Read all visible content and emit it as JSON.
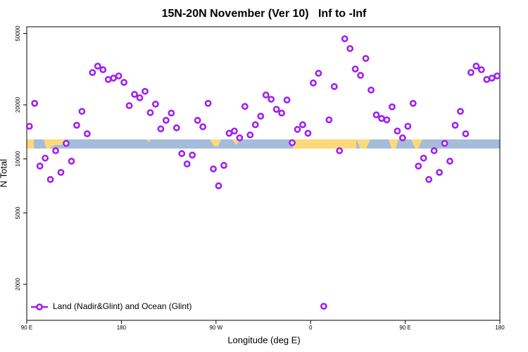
{
  "chart_data": {
    "type": "scatter",
    "title": "15N-20N November (Ver 10)   Inf to -Inf",
    "x_label": "Longitude (deg E)",
    "y_label": "N Total",
    "log_y": true,
    "legend_position": "bottom-left",
    "xlim": [
      90,
      540
    ],
    "ylim": [
      1260,
      54500
    ],
    "xticks": [
      {
        "value": 90,
        "label": "90 E"
      },
      180,
      {
        "value": 270,
        "label": "90 W"
      },
      {
        "value": 360,
        "label": "0"
      },
      {
        "value": 450,
        "label": "90 E"
      },
      {
        "value": 540,
        "label": "180"
      }
    ],
    "yticks": [
      2000,
      5000,
      10000,
      20000,
      50000
    ],
    "series": [
      {
        "name": "Land (Nadir&Glint) and Ocean (Glint)",
        "color": "#a020f0",
        "x": [
          92.5,
          97.5,
          102.5,
          107.5,
          112.5,
          117.5,
          122.5,
          127.5,
          132.5,
          137.5,
          142.5,
          147.5,
          152.5,
          157.5,
          162.5,
          167.5,
          172.5,
          177.5,
          182.5,
          187.5,
          192.5,
          197.5,
          202.5,
          207.5,
          212.5,
          217.5,
          222.5,
          227.5,
          232.5,
          237.5,
          242.5,
          247.5,
          252.5,
          257.5,
          262.5,
          267.5,
          272.5,
          277.5,
          282.5,
          287.5,
          292.5,
          297.5,
          302.5,
          307.5,
          312.5,
          317.5,
          322.5,
          327.5,
          332.5,
          337.5,
          342.5,
          347.5,
          352.5,
          357.5,
          362.5,
          367.5,
          372.5,
          377.5,
          382.5,
          387.5,
          392.5,
          397.5,
          402.5,
          407.5,
          412.5,
          417.5,
          422.5,
          427.5,
          432.5,
          437.5,
          442.5,
          447.5,
          452.5,
          457.5,
          462.5,
          467.5,
          472.5,
          477.5,
          482.5,
          487.5,
          492.5,
          497.5,
          502.5,
          507.5,
          512.5,
          517.5,
          522.5,
          527.5,
          532.5,
          537.5
        ],
        "values": [
          15200,
          20400,
          9120,
          10100,
          7680,
          11100,
          8410,
          12200,
          9710,
          15400,
          18400,
          13800,
          30300,
          32900,
          31400,
          27700,
          28200,
          29000,
          26700,
          19800,
          22900,
          21900,
          23800,
          18100,
          20200,
          14700,
          16400,
          18000,
          14900,
          10700,
          9370,
          10500,
          16400,
          15100,
          20400,
          8790,
          7080,
          9200,
          13900,
          14300,
          13100,
          19600,
          13600,
          15500,
          17300,
          22700,
          21500,
          18900,
          18000,
          21300,
          12300,
          14600,
          15500,
          13900,
          26500,
          30000,
          1510,
          16500,
          25300,
          11100,
          46700,
          41200,
          31700,
          29200,
          36300,
          24200,
          17600,
          16800,
          16500,
          19500,
          14300,
          13100,
          15200,
          20400,
          9120,
          10100,
          7680,
          11100,
          8410,
          12200,
          9710,
          15400,
          18400,
          13800,
          30300,
          32900,
          31400,
          27700,
          28200,
          29000
        ]
      }
    ]
  }
}
